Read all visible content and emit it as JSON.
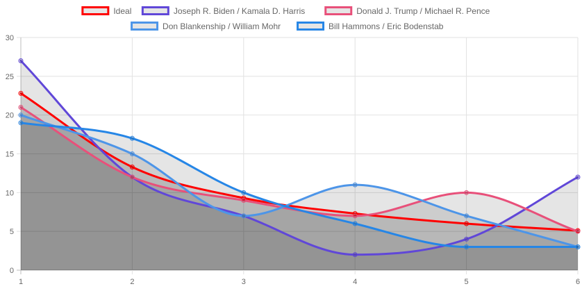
{
  "chart_data": {
    "type": "line",
    "title": "",
    "xlabel": "",
    "ylabel": "",
    "x": [
      "1",
      "2",
      "3",
      "4",
      "5",
      "6"
    ],
    "ylim": [
      0,
      30
    ],
    "y_ticks": [
      "0",
      "5",
      "10",
      "15",
      "20",
      "25",
      "30"
    ],
    "grid": true,
    "legend_position": "top",
    "series": [
      {
        "name": "Ideal",
        "color": "#ff0000",
        "values": [
          22.8,
          13.3,
          9.3,
          7.3,
          6.0,
          5.1
        ]
      },
      {
        "name": "Joseph R. Biden / Kamala D. Harris",
        "color": "#6047d8",
        "values": [
          27,
          12,
          7,
          2,
          4,
          12
        ]
      },
      {
        "name": "Donald J. Trump / Michael R. Pence",
        "color": "#e8507a",
        "values": [
          21,
          12,
          9,
          7,
          10,
          5
        ]
      },
      {
        "name": "Don Blankenship / William Mohr",
        "color": "#4d95e8",
        "values": [
          20,
          15,
          7,
          11,
          7,
          3
        ]
      },
      {
        "name": "Bill Hammons / Eric Bodenstab",
        "color": "#2686e6",
        "values": [
          19,
          17,
          10,
          6,
          3,
          3
        ]
      }
    ]
  }
}
